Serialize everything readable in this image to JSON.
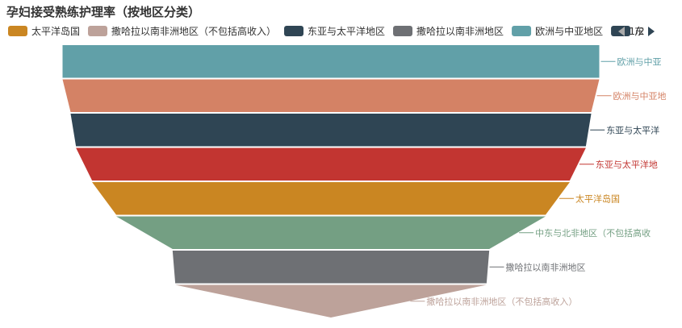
{
  "chart_data": {
    "type": "funnel",
    "title": "孕妇接受熟练护理率（按地区分类）",
    "sort": "descending",
    "legend": {
      "placement": "top",
      "page_indicator": "1/2",
      "visible_entries": [
        "太平洋岛国",
        "撒哈拉以南非洲地区（不包括高收入）",
        "东亚与太平洋地区",
        "撒哈拉以南非洲地区",
        "欧洲与中亚地区",
        "东亚与太平洋地区"
      ]
    },
    "stages": [
      {
        "label": "欧洲与中亚地区",
        "display_label": "欧洲与中亚",
        "relative_value": 100,
        "color": "#61a0a8"
      },
      {
        "label": "欧洲与中亚地区（不包括高收入）",
        "display_label": "欧洲与中亚地",
        "relative_value": 100,
        "color": "#d48265"
      },
      {
        "label": "东亚与太平洋地区",
        "display_label": "东亚与太平洋",
        "relative_value": 97,
        "color": "#2f4554"
      },
      {
        "label": "东亚与太平洋地区（不包括高收入）",
        "display_label": "东亚与太平洋地",
        "relative_value": 95,
        "color": "#c23531"
      },
      {
        "label": "太平洋岛国",
        "display_label": "太平洋岛国",
        "relative_value": 89,
        "color": "#ca8622"
      },
      {
        "label": "中东与北非地区（不包括高收入）",
        "display_label": "中东与北非地区（不包括高收",
        "relative_value": 80,
        "color": "#749f83"
      },
      {
        "label": "撒哈拉以南非洲地区",
        "display_label": "撒哈拉以南非洲地区",
        "relative_value": 59,
        "color": "#6e7074"
      },
      {
        "label": "撒哈拉以南非洲地区（不包括高收入）",
        "display_label": "撒哈拉以南非洲地区（不包括高收入）",
        "relative_value": 58,
        "color": "#bda29a"
      }
    ]
  }
}
